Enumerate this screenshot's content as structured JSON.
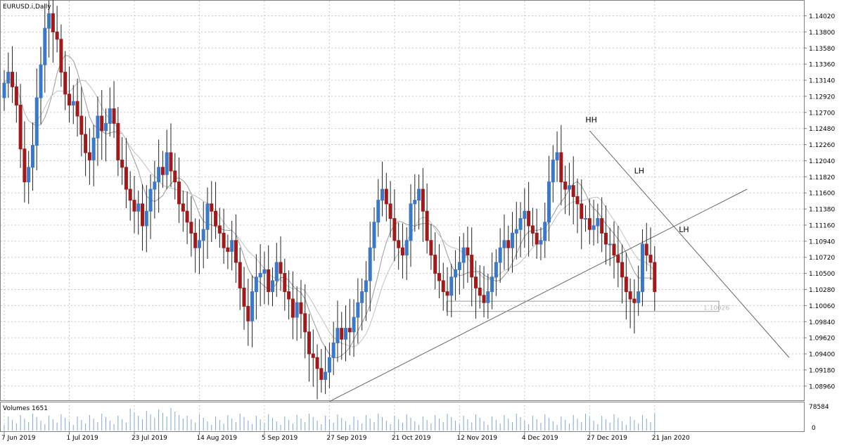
{
  "chart_data": {
    "type": "candlestick",
    "title": "EURUSD.i,Daily",
    "volume_label": "Volumes 1651",
    "volume_axis": {
      "ticks": [
        "78584",
        "0"
      ]
    },
    "current_price_label": "1.10026",
    "ylim": [
      1.0875,
      1.1408
    ],
    "y_ticks": [
      "1.14020",
      "1.13800",
      "1.13580",
      "1.13360",
      "1.13140",
      "1.12920",
      "1.12700",
      "1.12480",
      "1.12260",
      "1.12040",
      "1.11820",
      "1.11600",
      "1.11380",
      "1.11160",
      "1.10940",
      "1.10720",
      "1.10500",
      "1.10280",
      "1.10060",
      "1.09840",
      "1.09620",
      "1.09400",
      "1.09180",
      "1.08960"
    ],
    "x_tick_labels": [
      {
        "label": "7 Jun 2019",
        "bar": 0
      },
      {
        "label": "1 Jul 2019",
        "bar": 16
      },
      {
        "label": "23 Jul 2019",
        "bar": 32
      },
      {
        "label": "14 Aug 2019",
        "bar": 48
      },
      {
        "label": "5 Sep 2019",
        "bar": 64
      },
      {
        "label": "27 Sep 2019",
        "bar": 80
      },
      {
        "label": "21 Oct 2019",
        "bar": 96
      },
      {
        "label": "12 Nov 2019",
        "bar": 112
      },
      {
        "label": "4 Dec 2019",
        "bar": 128
      },
      {
        "label": "27 Dec 2019",
        "bar": 144
      },
      {
        "label": "21 Jan 2020",
        "bar": 160
      }
    ],
    "x_tick_labels_ext": [],
    "closes": [
      1.131,
      1.1325,
      1.1305,
      1.128,
      1.122,
      1.1175,
      1.1195,
      1.1225,
      1.129,
      1.1335,
      1.1385,
      1.1405,
      1.138,
      1.137,
      1.1325,
      1.1295,
      1.128,
      1.1285,
      1.1265,
      1.124,
      1.1215,
      1.1205,
      1.1235,
      1.1265,
      1.1245,
      1.1255,
      1.1275,
      1.1255,
      1.1205,
      1.1195,
      1.1165,
      1.115,
      1.1135,
      1.1145,
      1.1115,
      1.1135,
      1.1165,
      1.1175,
      1.1195,
      1.1185,
      1.1215,
      1.119,
      1.1175,
      1.1145,
      1.1135,
      1.112,
      1.1105,
      1.1085,
      1.1095,
      1.111,
      1.1145,
      1.1135,
      1.1115,
      1.1105,
      1.1085,
      1.108,
      1.1095,
      1.1065,
      1.103,
      1.1005,
      1.0985,
      1.1025,
      1.1045,
      1.105,
      1.1055,
      1.1025,
      1.104,
      1.1065,
      1.105,
      1.1025,
      1.1015,
      1.099,
      1.101,
      1.0995,
      1.097,
      1.094,
      1.0935,
      1.092,
      1.0905,
      1.0915,
      1.0935,
      1.0955,
      1.0975,
      1.096,
      1.0975,
      1.097,
      1.099,
      1.101,
      1.1025,
      1.104,
      1.1085,
      1.112,
      1.115,
      1.1165,
      1.1145,
      1.1125,
      1.1095,
      1.1085,
      1.1075,
      1.1095,
      1.1145,
      1.115,
      1.1165,
      1.1135,
      1.1095,
      1.1075,
      1.105,
      1.104,
      1.1025,
      1.102,
      1.1045,
      1.1055,
      1.1065,
      1.1085,
      1.1075,
      1.1045,
      1.103,
      1.102,
      1.101,
      1.1025,
      1.1045,
      1.1065,
      1.1085,
      1.1095,
      1.1085,
      1.1105,
      1.111,
      1.1125,
      1.1135,
      1.1115,
      1.1105,
      1.109,
      1.1095,
      1.112,
      1.1175,
      1.1205,
      1.1215,
      1.1175,
      1.1165,
      1.117,
      1.1155,
      1.1145,
      1.1125,
      1.1125,
      1.111,
      1.1115,
      1.1125,
      1.1105,
      1.109,
      1.109,
      1.1075,
      1.1065,
      1.1045,
      1.1025,
      1.1015,
      1.101,
      1.1025,
      1.109,
      1.1075,
      1.1065,
      1.1025
    ]
  }
}
